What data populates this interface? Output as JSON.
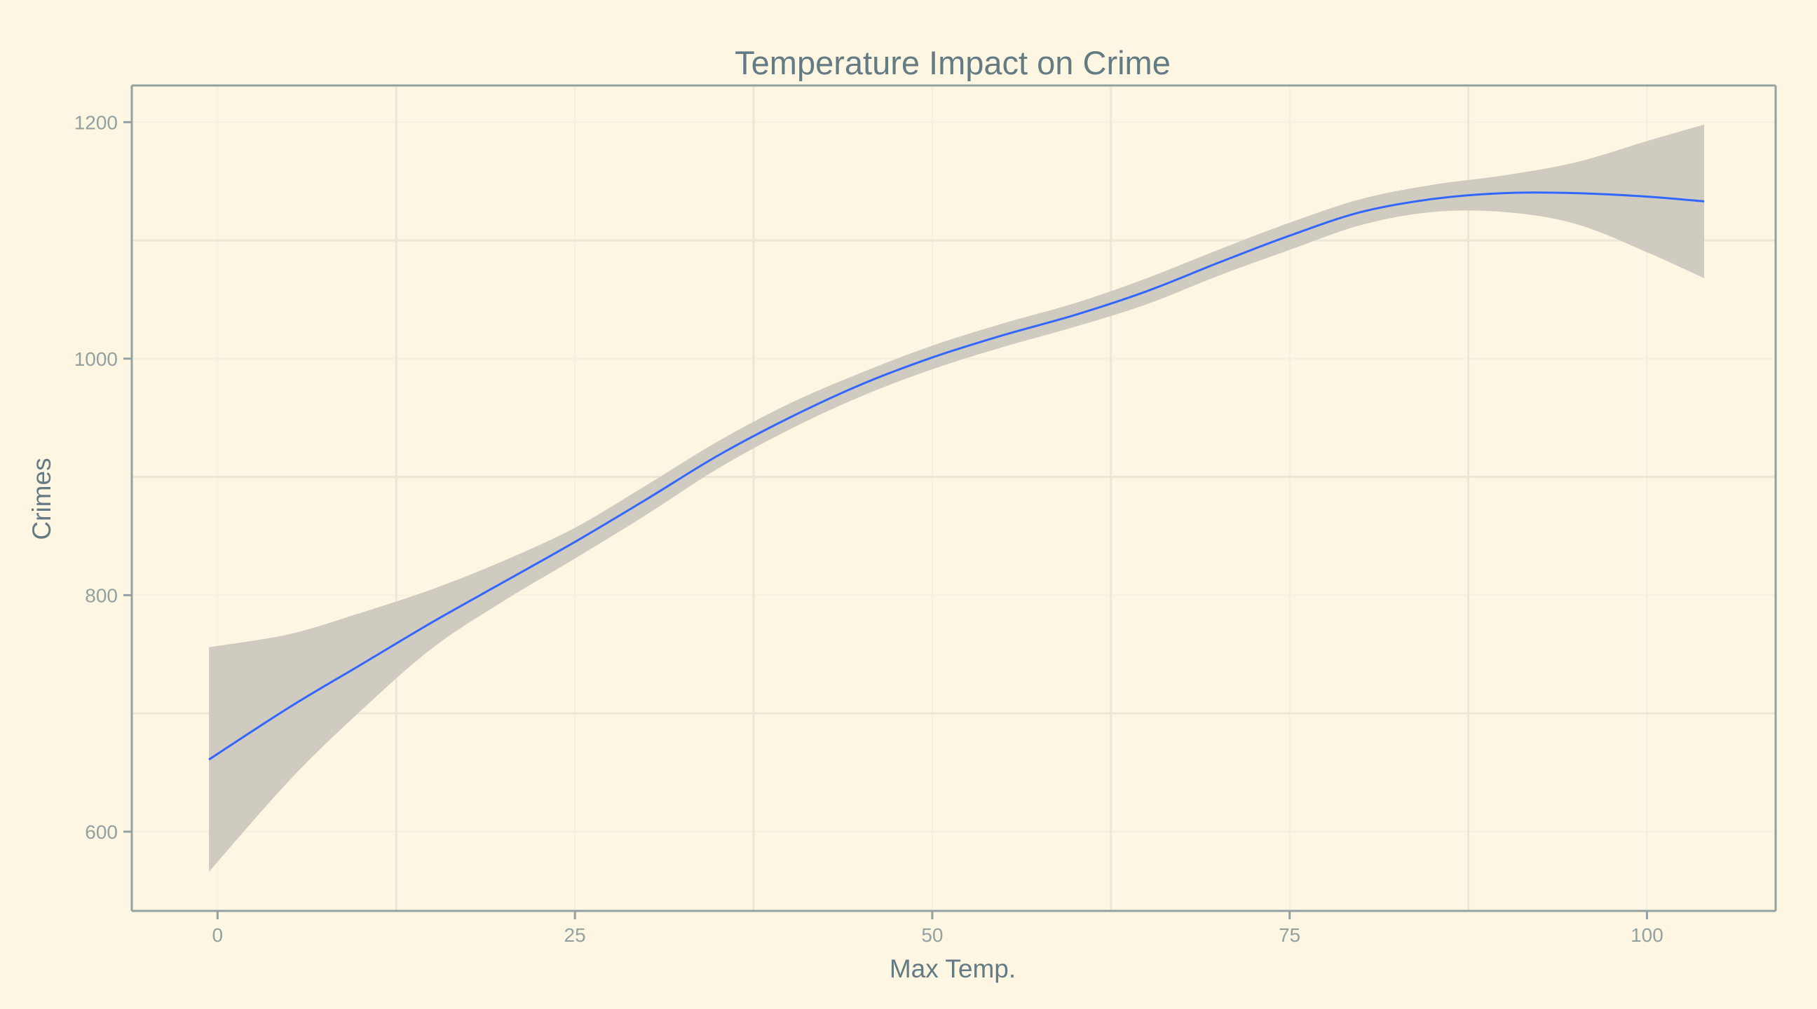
{
  "chart_data": {
    "type": "line",
    "title": "Temperature Impact on Crime",
    "xlabel": "Max Temp.",
    "ylabel": "Crimes",
    "xlim": [
      -6,
      109
    ],
    "ylim": [
      533,
      1231
    ],
    "x_ticks": [
      0,
      25,
      50,
      75,
      100
    ],
    "x_tick_labels": [
      "0",
      "25",
      "50",
      "75",
      "100"
    ],
    "y_ticks": [
      600,
      800,
      1000,
      1200
    ],
    "y_tick_labels": [
      "600",
      "800",
      "1000",
      "1200"
    ],
    "grid": true,
    "legend": "none",
    "series": [
      {
        "x": [
          -0.6,
          5,
          10,
          15,
          20,
          25,
          30,
          35,
          40,
          45,
          50,
          55,
          60,
          65,
          70,
          75,
          80,
          85,
          90,
          95,
          100,
          104
        ],
        "y": [
          661,
          705,
          741,
          777,
          811,
          845,
          881,
          918,
          950,
          978,
          1001,
          1020,
          1037,
          1057,
          1081,
          1104,
          1124,
          1135,
          1140,
          1140,
          1137,
          1133
        ],
        "lower": [
          566,
          643,
          702,
          755,
          795,
          831,
          868,
          907,
          940,
          968,
          991,
          1010,
          1027,
          1046,
          1070,
          1092,
          1113,
          1124,
          1124,
          1114,
          1090,
          1068
        ],
        "upper": [
          756,
          767,
          785,
          805,
          829,
          857,
          893,
          930,
          962,
          988,
          1011,
          1030,
          1047,
          1068,
          1092,
          1115,
          1135,
          1147,
          1155,
          1166,
          1184,
          1198
        ]
      }
    ],
    "colors": {
      "background": "#fdf6e3",
      "line": "#3366ff",
      "ribbon": "#cfcbc0",
      "grid_major": "#ece6d6",
      "grid_minor": "#f5efdd",
      "axis": "#93a1a1"
    }
  }
}
